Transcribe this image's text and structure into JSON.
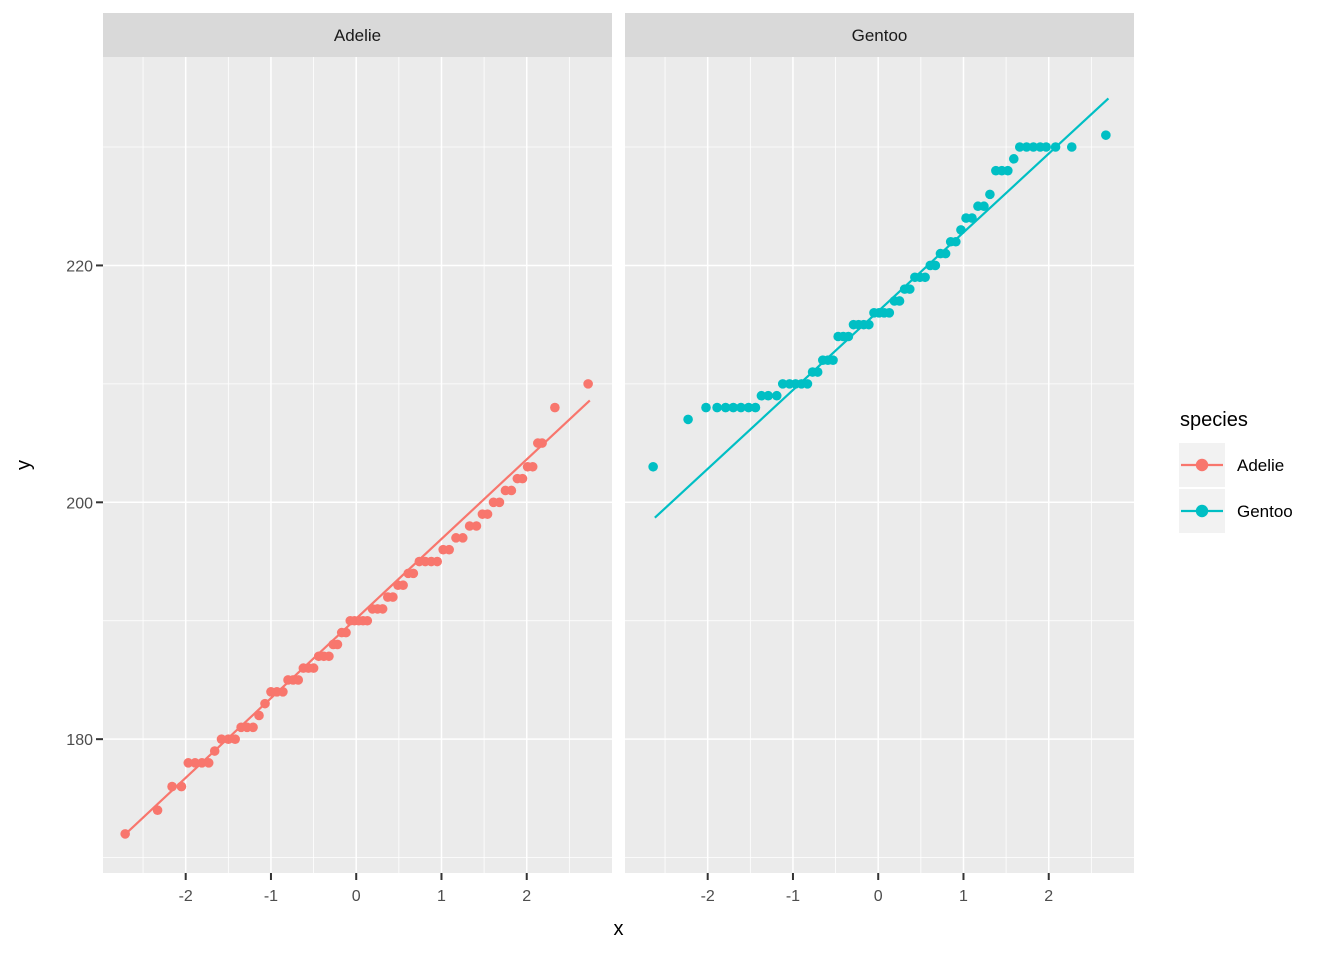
{
  "chart_data": {
    "type": "scatter",
    "subtype": "qq-plot-faceted",
    "title": "",
    "xlabel": "x",
    "ylabel": "y",
    "x_ticks": [
      -2,
      -1,
      0,
      1,
      2
    ],
    "x_minor": [
      -2.5,
      -1.5,
      -0.5,
      0.5,
      1.5,
      2.5
    ],
    "y_ticks": [
      180,
      200,
      220
    ],
    "y_minor": [
      170,
      190,
      210,
      230
    ],
    "xlim": [
      -2.97,
      3.0
    ],
    "ylim": [
      168.7,
      237.6
    ],
    "grid": true,
    "legend_position": "right",
    "legend": {
      "title": "species",
      "entries": [
        {
          "label": "Adelie",
          "color": "#F8766D"
        },
        {
          "label": "Gentoo",
          "color": "#00BFC4"
        }
      ]
    },
    "colors": {
      "panel_bg": "#EBEBEB",
      "strip_bg": "#D9D9D9",
      "grid": "#FFFFFF",
      "tick_text": "#4D4D4D",
      "tick_mark": "#333333",
      "legend_key_bg": "#F2F2F2",
      "background": "#FFFFFF"
    },
    "facets": [
      {
        "label": "Adelie",
        "color": "#F8766D",
        "line": {
          "x1": -2.72,
          "y1": 171.9,
          "x2": 2.74,
          "y2": 208.6
        },
        "points": [
          [
            -2.71,
            172
          ],
          [
            -2.33,
            174
          ],
          [
            -2.16,
            176
          ],
          [
            -2.05,
            176
          ],
          [
            -1.97,
            178
          ],
          [
            -1.89,
            178
          ],
          [
            -1.81,
            178
          ],
          [
            -1.73,
            178
          ],
          [
            -1.66,
            179
          ],
          [
            -1.58,
            180
          ],
          [
            -1.5,
            180
          ],
          [
            -1.42,
            180
          ],
          [
            -1.35,
            181
          ],
          [
            -1.28,
            181
          ],
          [
            -1.21,
            181
          ],
          [
            -1.14,
            182
          ],
          [
            -1.07,
            183
          ],
          [
            -1.0,
            184
          ],
          [
            -0.93,
            184
          ],
          [
            -0.86,
            184
          ],
          [
            -0.8,
            185
          ],
          [
            -0.74,
            185
          ],
          [
            -0.68,
            185
          ],
          [
            -0.62,
            186
          ],
          [
            -0.56,
            186
          ],
          [
            -0.5,
            186
          ],
          [
            -0.44,
            187
          ],
          [
            -0.38,
            187
          ],
          [
            -0.32,
            187
          ],
          [
            -0.27,
            188
          ],
          [
            -0.22,
            188
          ],
          [
            -0.17,
            189
          ],
          [
            -0.12,
            189
          ],
          [
            -0.07,
            190
          ],
          [
            -0.02,
            190
          ],
          [
            0.03,
            190
          ],
          [
            0.08,
            190
          ],
          [
            0.13,
            190
          ],
          [
            0.19,
            191
          ],
          [
            0.25,
            191
          ],
          [
            0.31,
            191
          ],
          [
            0.37,
            192
          ],
          [
            0.43,
            192
          ],
          [
            0.49,
            193
          ],
          [
            0.55,
            193
          ],
          [
            0.61,
            194
          ],
          [
            0.67,
            194
          ],
          [
            0.74,
            195
          ],
          [
            0.81,
            195
          ],
          [
            0.88,
            195
          ],
          [
            0.95,
            195
          ],
          [
            1.02,
            196
          ],
          [
            1.09,
            196
          ],
          [
            1.17,
            197
          ],
          [
            1.25,
            197
          ],
          [
            1.33,
            198
          ],
          [
            1.41,
            198
          ],
          [
            1.48,
            199
          ],
          [
            1.54,
            199
          ],
          [
            1.61,
            200
          ],
          [
            1.68,
            200
          ],
          [
            1.75,
            201
          ],
          [
            1.82,
            201
          ],
          [
            1.89,
            202
          ],
          [
            1.95,
            202
          ],
          [
            2.01,
            203
          ],
          [
            2.07,
            203
          ],
          [
            2.13,
            205
          ],
          [
            2.18,
            205
          ],
          [
            2.33,
            208
          ],
          [
            2.72,
            210
          ]
        ]
      },
      {
        "label": "Gentoo",
        "color": "#00BFC4",
        "line": {
          "x1": -2.62,
          "y1": 198.7,
          "x2": 2.7,
          "y2": 234.1
        },
        "points": [
          [
            -2.64,
            203
          ],
          [
            -2.23,
            207
          ],
          [
            -2.02,
            208
          ],
          [
            -1.89,
            208
          ],
          [
            -1.79,
            208
          ],
          [
            -1.7,
            208
          ],
          [
            -1.61,
            208
          ],
          [
            -1.52,
            208
          ],
          [
            -1.44,
            208
          ],
          [
            -1.37,
            209
          ],
          [
            -1.29,
            209
          ],
          [
            -1.19,
            209
          ],
          [
            -1.12,
            210
          ],
          [
            -1.04,
            210
          ],
          [
            -0.97,
            210
          ],
          [
            -0.9,
            210
          ],
          [
            -0.83,
            210
          ],
          [
            -0.77,
            211
          ],
          [
            -0.71,
            211
          ],
          [
            -0.65,
            212
          ],
          [
            -0.59,
            212
          ],
          [
            -0.53,
            212
          ],
          [
            -0.47,
            214
          ],
          [
            -0.41,
            214
          ],
          [
            -0.35,
            214
          ],
          [
            -0.29,
            215
          ],
          [
            -0.23,
            215
          ],
          [
            -0.17,
            215
          ],
          [
            -0.11,
            215
          ],
          [
            -0.05,
            216
          ],
          [
            0.01,
            216
          ],
          [
            0.07,
            216
          ],
          [
            0.13,
            216
          ],
          [
            0.19,
            217
          ],
          [
            0.25,
            217
          ],
          [
            0.31,
            218
          ],
          [
            0.37,
            218
          ],
          [
            0.43,
            219
          ],
          [
            0.49,
            219
          ],
          [
            0.55,
            219
          ],
          [
            0.61,
            220
          ],
          [
            0.67,
            220
          ],
          [
            0.73,
            221
          ],
          [
            0.79,
            221
          ],
          [
            0.85,
            222
          ],
          [
            0.91,
            222
          ],
          [
            0.97,
            223
          ],
          [
            1.03,
            224
          ],
          [
            1.1,
            224
          ],
          [
            1.17,
            225
          ],
          [
            1.24,
            225
          ],
          [
            1.31,
            226
          ],
          [
            1.38,
            228
          ],
          [
            1.45,
            228
          ],
          [
            1.52,
            228
          ],
          [
            1.59,
            229
          ],
          [
            1.66,
            230
          ],
          [
            1.74,
            230
          ],
          [
            1.82,
            230
          ],
          [
            1.9,
            230
          ],
          [
            1.97,
            230
          ],
          [
            2.08,
            230
          ],
          [
            2.27,
            230
          ],
          [
            2.67,
            231
          ]
        ]
      }
    ]
  }
}
